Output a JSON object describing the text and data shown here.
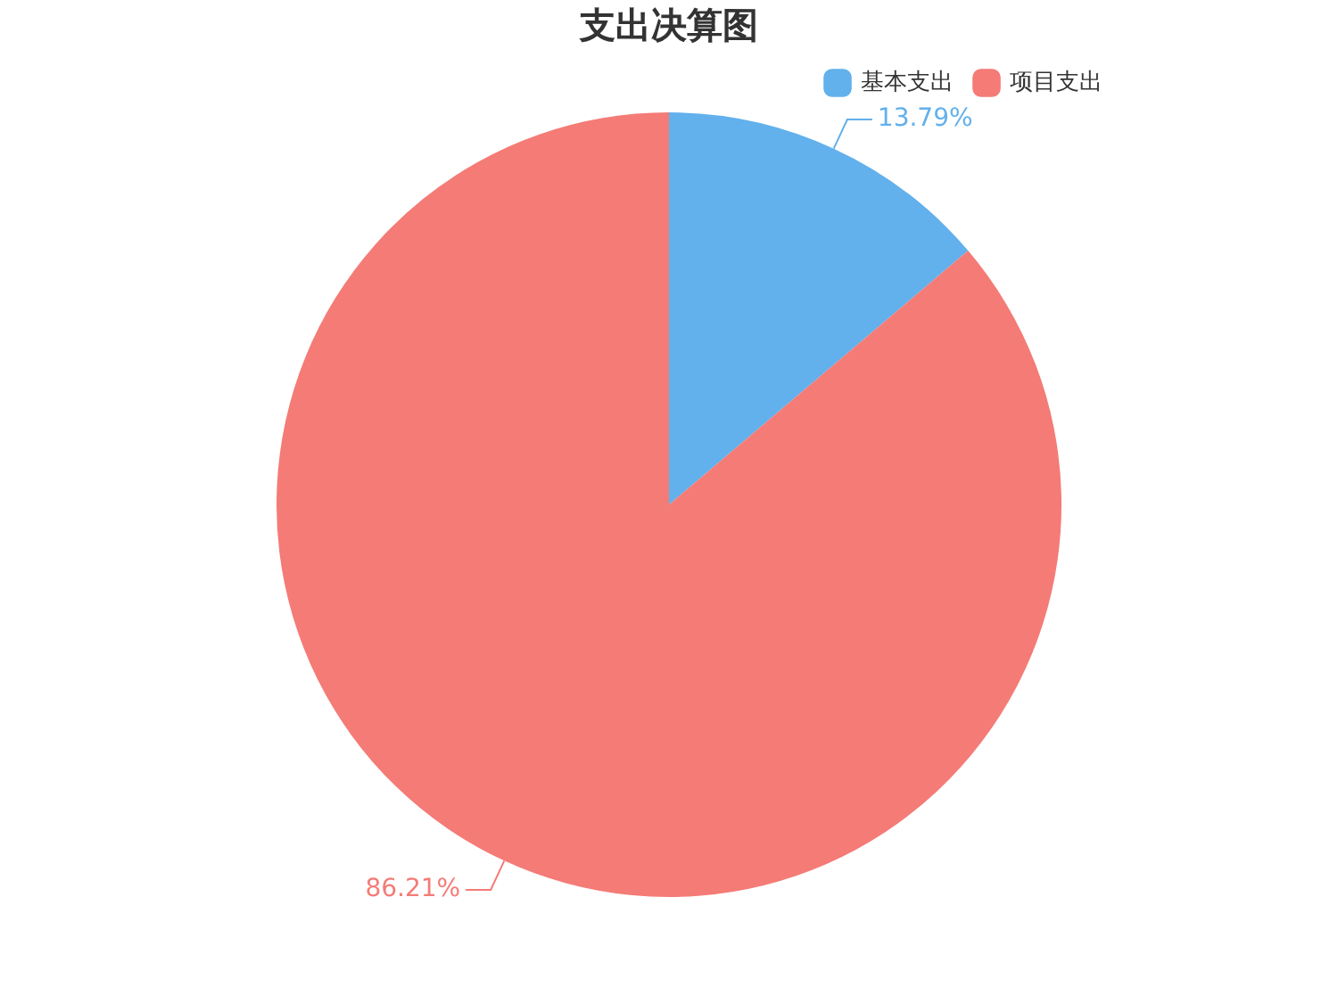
{
  "chart_data": {
    "type": "pie",
    "title": "支出决算图",
    "categories": [
      "基本支出",
      "项目支出"
    ],
    "values": [
      13.79,
      86.21
    ],
    "colors": [
      "#62b0ec",
      "#f47b76"
    ],
    "value_labels": [
      "13.79%",
      "86.21%"
    ],
    "legend": "top right"
  }
}
